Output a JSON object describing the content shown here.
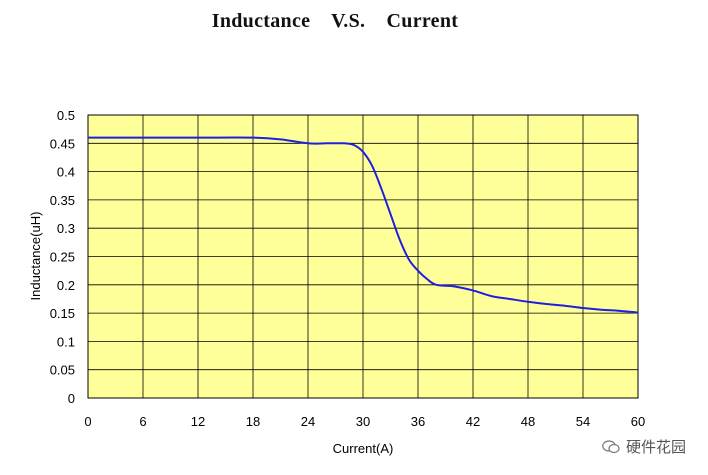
{
  "chart_data": {
    "type": "line",
    "title": "Inductance    V.S.    Current",
    "xlabel": "Current(A)",
    "ylabel": "Inductance(uH)",
    "xlim": [
      0,
      60
    ],
    "ylim": [
      0,
      0.5
    ],
    "xticks": [
      "0",
      "6",
      "12",
      "18",
      "24",
      "30",
      "36",
      "42",
      "48",
      "54",
      "60"
    ],
    "yticks": [
      "0",
      "0.05",
      "0.1",
      "0.15",
      "0.2",
      "0.25",
      "0.3",
      "0.35",
      "0.4",
      "0.45",
      "0.5"
    ],
    "grid": true,
    "legend": "none",
    "colors": {
      "plot_background": "#FFFF99",
      "line": "#1F1FE0",
      "grid": "#000000"
    },
    "series": [
      {
        "x": [
          0,
          6,
          12,
          18,
          21,
          24,
          26,
          28,
          29,
          30,
          31,
          32,
          33,
          34,
          35,
          36,
          37,
          38,
          40,
          42,
          44,
          46,
          48,
          50,
          52,
          54,
          56,
          58,
          60
        ],
        "values": [
          0.46,
          0.46,
          0.46,
          0.46,
          0.457,
          0.45,
          0.45,
          0.45,
          0.447,
          0.435,
          0.41,
          0.37,
          0.325,
          0.28,
          0.245,
          0.225,
          0.21,
          0.2,
          0.197,
          0.19,
          0.18,
          0.175,
          0.17,
          0.166,
          0.163,
          0.159,
          0.156,
          0.154,
          0.151
        ]
      }
    ]
  },
  "watermark": {
    "text": "硬件花园",
    "icon": "wechat-icon"
  }
}
